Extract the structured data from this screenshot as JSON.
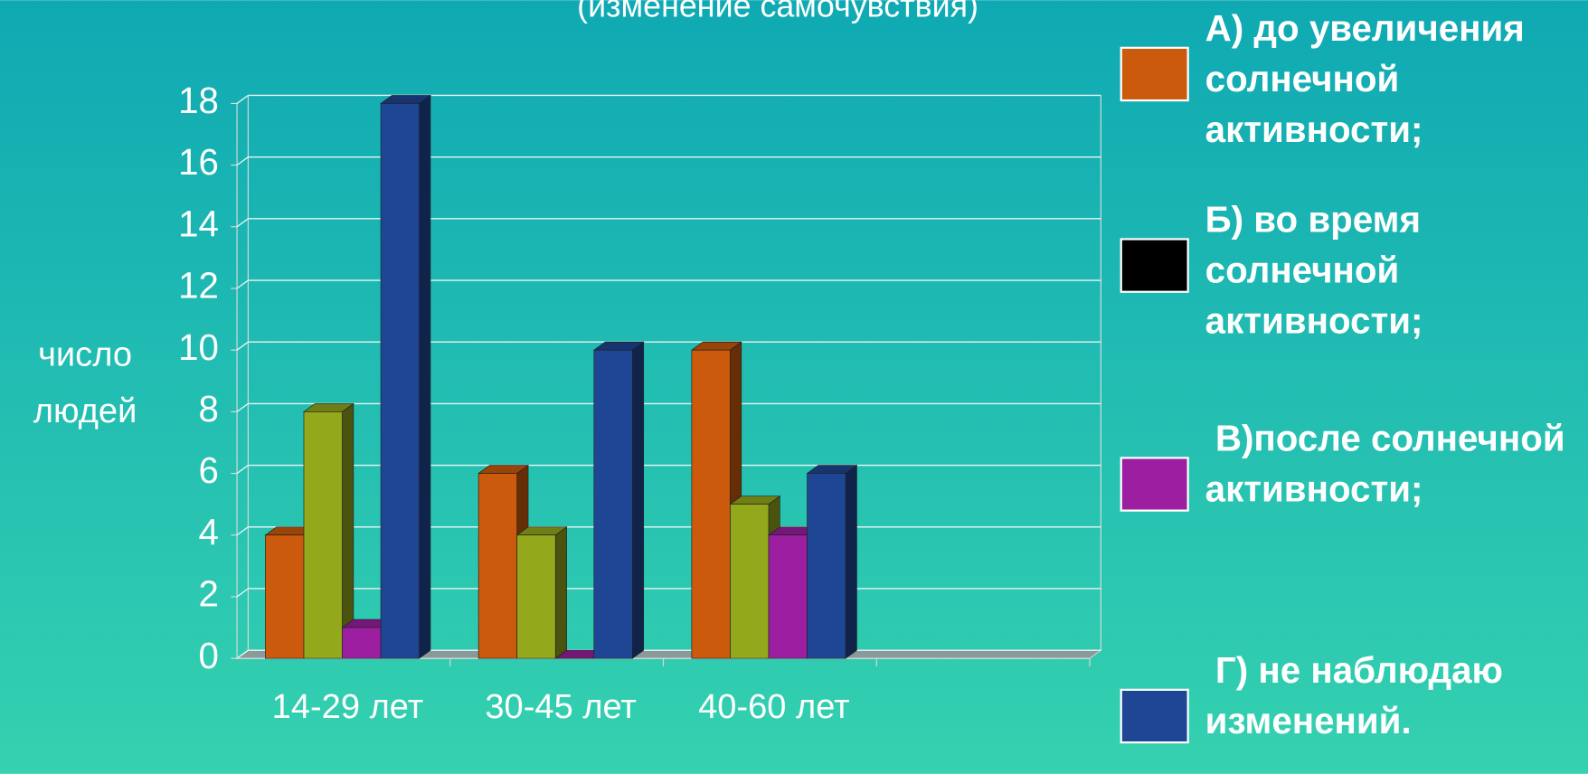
{
  "chart_data": {
    "type": "bar3d",
    "subtitle": "(изменение самочувствия)",
    "ylabel": [
      "число",
      "людей"
    ],
    "categories": [
      "14-29 лет",
      "30-45 лет",
      "40-60 лет",
      null
    ],
    "series": [
      {
        "name": "А) до увеличения солнечной активности;",
        "color": "#cc5a0c",
        "values": [
          4,
          6,
          10,
          null
        ]
      },
      {
        "name": "Б) во время солнечной активности;",
        "color": "#94a81c",
        "values": [
          8,
          4,
          5,
          null
        ]
      },
      {
        "name": " В)после солнечной активности;",
        "color": "#9b1fa0",
        "values": [
          1,
          0,
          4,
          null
        ]
      },
      {
        "name": " Г) не наблюдаю изменений.",
        "color": "#1f4595",
        "values": [
          18,
          10,
          6,
          null
        ]
      }
    ],
    "legend_colors": [
      "#cc5a0c",
      "#000000",
      "#9b1fa0",
      "#1f4595"
    ],
    "ylim": [
      0,
      18
    ],
    "yticks": [
      0,
      2,
      4,
      6,
      8,
      10,
      12,
      14,
      16,
      18
    ],
    "grid": true,
    "legend": "right"
  }
}
